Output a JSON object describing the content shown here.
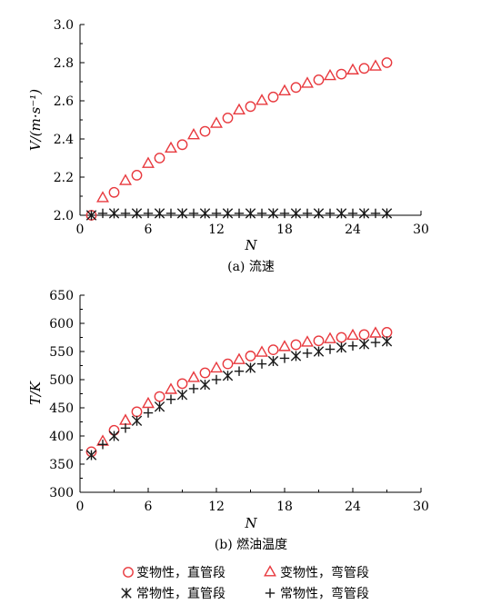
{
  "colors": {
    "variable_property": "#e8393e",
    "constant_property": "#1a1a1a",
    "axis": "#000000"
  },
  "legend": {
    "items": [
      {
        "marker": "circle",
        "color": "#e8393e",
        "label": "变物性，直管段"
      },
      {
        "marker": "triangle",
        "color": "#e8393e",
        "label": "变物性，弯管段"
      },
      {
        "marker": "asterisk",
        "color": "#1a1a1a",
        "label": "常物性，直管段"
      },
      {
        "marker": "plus",
        "color": "#1a1a1a",
        "label": "常物性，弯管段"
      }
    ]
  },
  "chart_data": [
    {
      "type": "scatter",
      "caption": "(a) 流速",
      "xlabel": "N",
      "ylabel": "V/(m·s⁻¹)",
      "xlim": [
        0,
        30
      ],
      "ylim": [
        2.0,
        3.0
      ],
      "xticks": [
        "0",
        "6",
        "12",
        "18",
        "24",
        "30"
      ],
      "yticks": [
        "2.0",
        "2.2",
        "2.4",
        "2.6",
        "2.8",
        "3.0"
      ],
      "series": [
        {
          "marker": "circle",
          "color": "#e8393e",
          "x": [
            1,
            3,
            5,
            7,
            9,
            11,
            13,
            15,
            17,
            19,
            21,
            23,
            25,
            27
          ],
          "y": [
            2.0,
            2.12,
            2.21,
            2.3,
            2.37,
            2.44,
            2.51,
            2.57,
            2.62,
            2.67,
            2.71,
            2.74,
            2.77,
            2.8
          ]
        },
        {
          "marker": "triangle",
          "color": "#e8393e",
          "x": [
            2,
            4,
            6,
            8,
            10,
            12,
            14,
            16,
            18,
            20,
            22,
            24,
            26
          ],
          "y": [
            2.09,
            2.18,
            2.27,
            2.35,
            2.42,
            2.48,
            2.55,
            2.6,
            2.65,
            2.69,
            2.73,
            2.76,
            2.78
          ]
        },
        {
          "marker": "asterisk",
          "color": "#1a1a1a",
          "x": [
            1,
            3,
            5,
            7,
            9,
            11,
            13,
            15,
            17,
            19,
            21,
            23,
            25,
            27
          ],
          "y": [
            2.0,
            2.01,
            2.01,
            2.01,
            2.01,
            2.01,
            2.01,
            2.01,
            2.01,
            2.01,
            2.01,
            2.01,
            2.01,
            2.01
          ]
        },
        {
          "marker": "plus",
          "color": "#1a1a1a",
          "x": [
            2,
            4,
            6,
            8,
            10,
            12,
            14,
            16,
            18,
            20,
            22,
            24,
            26
          ],
          "y": [
            2.01,
            2.01,
            2.01,
            2.01,
            2.01,
            2.01,
            2.01,
            2.01,
            2.01,
            2.01,
            2.01,
            2.01,
            2.01
          ]
        }
      ]
    },
    {
      "type": "scatter",
      "caption": "(b) 燃油温度",
      "xlabel": "N",
      "ylabel": "T/K",
      "xlim": [
        0,
        30
      ],
      "ylim": [
        300,
        650
      ],
      "xticks": [
        "0",
        "6",
        "12",
        "18",
        "24",
        "30"
      ],
      "yticks": [
        "300",
        "350",
        "400",
        "450",
        "500",
        "550",
        "600",
        "650"
      ],
      "series": [
        {
          "marker": "circle",
          "color": "#e8393e",
          "x": [
            1,
            3,
            5,
            7,
            9,
            11,
            13,
            15,
            17,
            19,
            21,
            23,
            25,
            27
          ],
          "y": [
            372,
            410,
            443,
            470,
            493,
            512,
            528,
            542,
            553,
            562,
            569,
            575,
            580,
            584
          ]
        },
        {
          "marker": "triangle",
          "color": "#e8393e",
          "x": [
            2,
            4,
            6,
            8,
            10,
            12,
            14,
            16,
            18,
            20,
            22,
            24,
            26
          ],
          "y": [
            390,
            427,
            457,
            482,
            503,
            520,
            535,
            548,
            558,
            566,
            572,
            578,
            582
          ]
        },
        {
          "marker": "asterisk",
          "color": "#1a1a1a",
          "x": [
            1,
            3,
            5,
            7,
            9,
            11,
            13,
            15,
            17,
            19,
            21,
            23,
            25,
            27
          ],
          "y": [
            366,
            400,
            427,
            452,
            473,
            491,
            507,
            521,
            533,
            542,
            550,
            557,
            563,
            568
          ]
        },
        {
          "marker": "plus",
          "color": "#1a1a1a",
          "x": [
            2,
            4,
            6,
            8,
            10,
            12,
            14,
            16,
            18,
            20,
            22,
            24,
            26
          ],
          "y": [
            385,
            414,
            441,
            465,
            484,
            500,
            515,
            528,
            538,
            547,
            554,
            560,
            566
          ]
        }
      ]
    }
  ]
}
